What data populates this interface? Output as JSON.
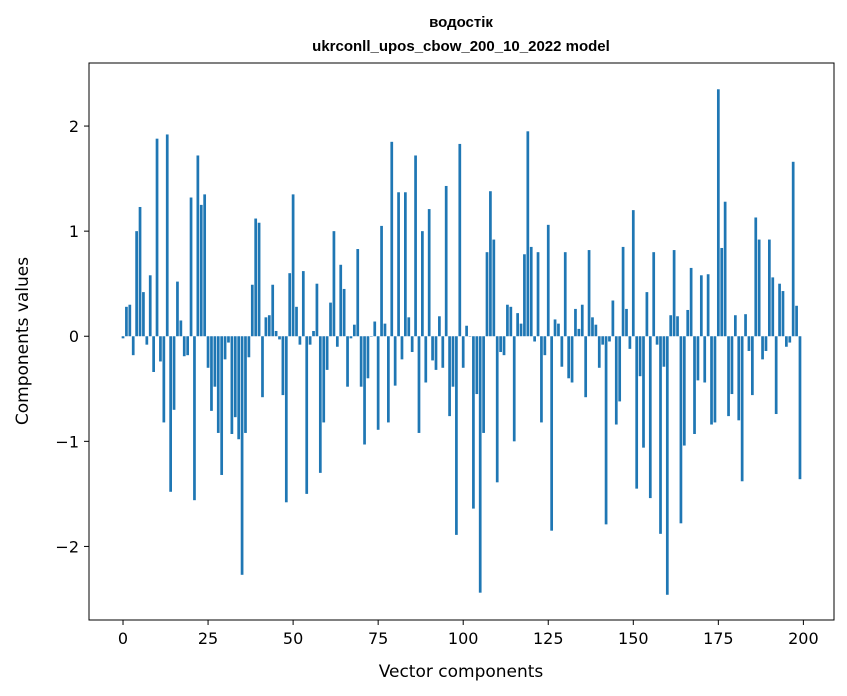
{
  "chart_data": {
    "type": "bar",
    "title": "водостік",
    "subtitle": "ukrconll_upos_cbow_200_10_2022 model",
    "xlabel": "Vector components",
    "ylabel": "Components values",
    "xlim": [
      -10,
      209
    ],
    "ylim": [
      -2.7,
      2.6
    ],
    "xticks": [
      0,
      25,
      50,
      75,
      100,
      125,
      150,
      175,
      200
    ],
    "yticks": [
      -2,
      -1,
      0,
      1,
      2
    ],
    "ytick_labels": [
      "−2",
      "−1",
      "0",
      "1",
      "2"
    ],
    "bar_color": "#1f77b4",
    "grid": false,
    "x": [
      0,
      1,
      2,
      3,
      4,
      5,
      6,
      7,
      8,
      9,
      10,
      11,
      12,
      13,
      14,
      15,
      16,
      17,
      18,
      19,
      20,
      21,
      22,
      23,
      24,
      25,
      26,
      27,
      28,
      29,
      30,
      31,
      32,
      33,
      34,
      35,
      36,
      37,
      38,
      39,
      40,
      41,
      42,
      43,
      44,
      45,
      46,
      47,
      48,
      49,
      50,
      51,
      52,
      53,
      54,
      55,
      56,
      57,
      58,
      59,
      60,
      61,
      62,
      63,
      64,
      65,
      66,
      67,
      68,
      69,
      70,
      71,
      72,
      73,
      74,
      75,
      76,
      77,
      78,
      79,
      80,
      81,
      82,
      83,
      84,
      85,
      86,
      87,
      88,
      89,
      90,
      91,
      92,
      93,
      94,
      95,
      96,
      97,
      98,
      99,
      100,
      101,
      102,
      103,
      104,
      105,
      106,
      107,
      108,
      109,
      110,
      111,
      112,
      113,
      114,
      115,
      116,
      117,
      118,
      119,
      120,
      121,
      122,
      123,
      124,
      125,
      126,
      127,
      128,
      129,
      130,
      131,
      132,
      133,
      134,
      135,
      136,
      137,
      138,
      139,
      140,
      141,
      142,
      143,
      144,
      145,
      146,
      147,
      148,
      149,
      150,
      151,
      152,
      153,
      154,
      155,
      156,
      157,
      158,
      159,
      160,
      161,
      162,
      163,
      164,
      165,
      166,
      167,
      168,
      169,
      170,
      171,
      172,
      173,
      174,
      175,
      176,
      177,
      178,
      179,
      180,
      181,
      182,
      183,
      184,
      185,
      186,
      187,
      188,
      189,
      190,
      191,
      192,
      193,
      194,
      195,
      196,
      197,
      198,
      199
    ],
    "values": [
      -0.02,
      0.28,
      0.3,
      -0.18,
      1.0,
      1.23,
      0.42,
      -0.08,
      0.58,
      -0.34,
      1.88,
      -0.24,
      -0.82,
      1.92,
      -1.48,
      -0.7,
      0.52,
      0.15,
      -0.19,
      -0.18,
      1.32,
      -1.56,
      1.72,
      1.25,
      1.35,
      -0.3,
      -0.71,
      -0.48,
      -0.92,
      -1.32,
      -0.22,
      -0.06,
      -0.93,
      -0.77,
      -0.98,
      -2.27,
      -0.92,
      -0.2,
      0.49,
      1.12,
      1.08,
      -0.58,
      0.18,
      0.2,
      0.49,
      0.05,
      -0.03,
      -0.56,
      -1.58,
      0.6,
      1.35,
      0.28,
      -0.08,
      0.62,
      -1.5,
      -0.08,
      0.05,
      0.5,
      -1.3,
      -0.82,
      -0.32,
      0.32,
      1.0,
      -0.1,
      0.68,
      0.45,
      -0.48,
      -0.02,
      0.11,
      0.83,
      -0.48,
      -1.03,
      -0.4,
      0.0,
      0.14,
      -0.89,
      1.05,
      0.12,
      -0.82,
      1.85,
      -0.47,
      1.37,
      -0.22,
      1.37,
      0.18,
      -0.15,
      1.72,
      -0.92,
      1.0,
      -0.44,
      1.21,
      -0.23,
      -0.32,
      0.19,
      -0.3,
      1.43,
      -0.76,
      -0.48,
      -1.89,
      1.83,
      -0.3,
      0.1,
      0.0,
      -1.64,
      -0.55,
      -2.44,
      -0.92,
      0.8,
      1.38,
      0.92,
      -1.39,
      -0.15,
      -0.18,
      0.3,
      0.28,
      -1.0,
      0.22,
      0.12,
      0.78,
      1.95,
      0.85,
      -0.05,
      0.8,
      -0.82,
      -0.18,
      1.06,
      -1.85,
      0.16,
      0.12,
      -0.29,
      0.8,
      -0.4,
      -0.44,
      0.26,
      0.07,
      0.3,
      -0.58,
      0.82,
      0.18,
      0.11,
      -0.3,
      -0.08,
      -1.79,
      -0.05,
      0.34,
      -0.84,
      -0.62,
      0.85,
      0.26,
      -0.12,
      1.2,
      -1.45,
      -0.38,
      -1.06,
      0.42,
      -1.54,
      0.8,
      -0.08,
      -1.88,
      -0.29,
      -2.46,
      0.2,
      0.82,
      0.19,
      -1.78,
      -1.04,
      0.25,
      0.65,
      -0.93,
      -0.42,
      0.58,
      -0.44,
      0.59,
      -0.84,
      -0.82,
      2.35,
      0.84,
      1.28,
      -0.76,
      -0.55,
      0.2,
      -0.8,
      -1.38,
      0.21,
      -0.14,
      -0.56,
      1.13,
      0.92,
      -0.22,
      -0.14,
      0.92,
      0.56,
      -0.74,
      0.5,
      0.43,
      -0.1,
      -0.06,
      1.66,
      0.29,
      -1.36
    ]
  }
}
